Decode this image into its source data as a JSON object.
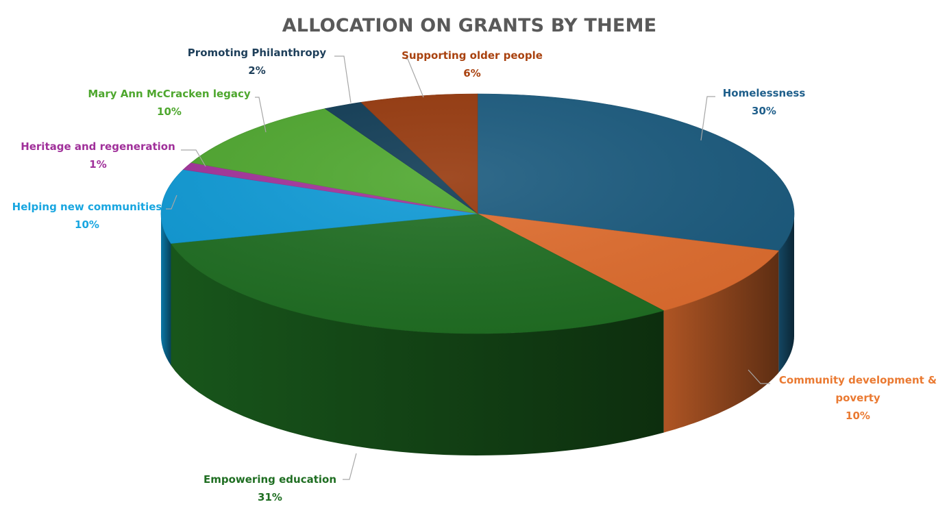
{
  "chart_data": {
    "type": "pie",
    "title": "ALLOCATION ON GRANTS BY THEME",
    "slices": [
      {
        "name": "Homelessness",
        "value": 30,
        "label_lines": [
          "Homelessness"
        ],
        "value_label": "30%",
        "color": "#1a5a7e",
        "label_color": "#1f5f8b"
      },
      {
        "name": "Community development & poverty",
        "value": 10,
        "label_lines": [
          "Community development &",
          "poverty"
        ],
        "value_label": "10%",
        "color": "#e06d2e",
        "label_color": "#ea7a32"
      },
      {
        "name": "Empowering education",
        "value": 31,
        "label_lines": [
          "Empowering education"
        ],
        "value_label": "31%",
        "color": "#1f6e22",
        "label_color": "#1f6e22"
      },
      {
        "name": "Helping new communities",
        "value": 10,
        "label_lines": [
          "Helping new communities"
        ],
        "value_label": "10%",
        "color": "#0e9ad6",
        "label_color": "#19a6e0"
      },
      {
        "name": "Heritage and regeneration",
        "value": 1,
        "label_lines": [
          "Heritage and regeneration"
        ],
        "value_label": "1%",
        "color": "#a2329a",
        "label_color": "#a0309a"
      },
      {
        "name": "Mary Ann McCracken legacy",
        "value": 10,
        "label_lines": [
          "Mary Ann McCracken legacy"
        ],
        "value_label": "10%",
        "color": "#4ea72e",
        "label_color": "#4ea72e"
      },
      {
        "name": "Promoting Philanthropy",
        "value": 2,
        "label_lines": [
          "Promoting Philanthropy"
        ],
        "value_label": "2%",
        "color": "#0f3b55",
        "label_color": "#1e3f5a"
      },
      {
        "name": "Supporting older people",
        "value": 6,
        "label_lines": [
          "Supporting older people"
        ],
        "value_label": "6%",
        "color": "#96380c",
        "label_color": "#a9420f"
      }
    ],
    "legend": "none",
    "style": "3d-pie"
  }
}
